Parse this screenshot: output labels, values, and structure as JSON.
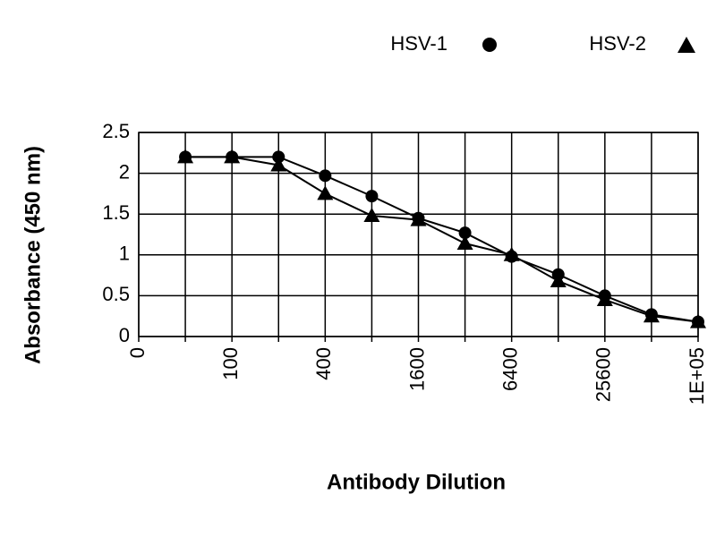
{
  "chart_data": {
    "type": "line",
    "x_label": "Antibody Dilution",
    "y_label": "Absorbance (450 nm)",
    "categories": [
      "0",
      null,
      "100",
      null,
      "400",
      null,
      "1600",
      null,
      "6400",
      null,
      "25600",
      null,
      "1E+05"
    ],
    "series": [
      {
        "name": "HSV-1",
        "color": "#000000",
        "marker": "circle",
        "values": [
          null,
          2.2,
          2.2,
          2.2,
          1.97,
          1.72,
          1.45,
          1.27,
          0.98,
          0.76,
          0.5,
          0.27,
          0.18
        ]
      },
      {
        "name": "HSV-2",
        "color": "#000000",
        "marker": "triangle",
        "values": [
          null,
          2.2,
          2.2,
          2.1,
          1.75,
          1.48,
          1.43,
          1.14,
          1.0,
          0.68,
          0.45,
          0.25,
          0.18
        ]
      }
    ],
    "ylim": [
      0,
      2.5
    ],
    "yticks": [
      0,
      0.5,
      1,
      1.5,
      2,
      2.5
    ],
    "grid": true,
    "legend": "top-right"
  }
}
